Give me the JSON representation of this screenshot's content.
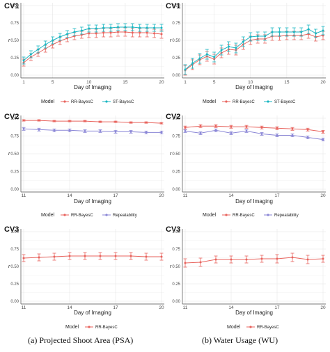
{
  "captions": {
    "left": "(a) Projected Shoot Area (PSA)",
    "right": "(b) Water Usage (WU)"
  },
  "colors": {
    "rr": "#e8635d",
    "st": "#19b6c2",
    "rep": "#8a86d6",
    "grid": "#e6e6e6",
    "axis": "#4d4d4d"
  },
  "chart_data": [
    {
      "id": "psa-cv1",
      "type": "line",
      "title": "CV1",
      "xlabel": "Day of Imaging",
      "ylabel": "r",
      "xlim": [
        1,
        20
      ],
      "ylim": [
        0,
        1
      ],
      "xticks": [
        1,
        5,
        10,
        15,
        20
      ],
      "yticks": [
        0.0,
        0.25,
        0.5,
        0.75,
        1.0
      ],
      "ytick_labels": [
        "0.00",
        "0.25",
        "0.50",
        "0.75",
        "1.00"
      ],
      "legend_title": "Model",
      "legend_position": "bottom",
      "x": [
        1,
        2,
        3,
        4,
        5,
        6,
        7,
        8,
        9,
        10,
        11,
        12,
        13,
        14,
        15,
        16,
        17,
        18,
        19,
        20
      ],
      "series": [
        {
          "name": "RR-BayesC",
          "color_key": "rr",
          "values": [
            0.18,
            0.26,
            0.32,
            0.38,
            0.44,
            0.49,
            0.53,
            0.56,
            0.58,
            0.6,
            0.6,
            0.61,
            0.61,
            0.62,
            0.62,
            0.61,
            0.61,
            0.61,
            0.6,
            0.59
          ],
          "error": [
            0.05,
            0.05,
            0.05,
            0.05,
            0.05,
            0.05,
            0.05,
            0.05,
            0.05,
            0.06,
            0.06,
            0.06,
            0.06,
            0.06,
            0.06,
            0.06,
            0.06,
            0.06,
            0.06,
            0.06
          ]
        },
        {
          "name": "ST-BayesC",
          "color_key": "st",
          "values": [
            0.21,
            0.3,
            0.37,
            0.44,
            0.5,
            0.55,
            0.59,
            0.62,
            0.64,
            0.67,
            0.67,
            0.68,
            0.68,
            0.69,
            0.69,
            0.69,
            0.68,
            0.68,
            0.68,
            0.68
          ],
          "error": [
            0.05,
            0.05,
            0.05,
            0.05,
            0.05,
            0.05,
            0.05,
            0.05,
            0.05,
            0.05,
            0.05,
            0.05,
            0.05,
            0.05,
            0.05,
            0.05,
            0.05,
            0.05,
            0.05,
            0.05
          ]
        }
      ]
    },
    {
      "id": "wu-cv1",
      "type": "line",
      "title": "CV1",
      "xlabel": "Day of Imaging",
      "ylabel": "r",
      "xlim": [
        1,
        20
      ],
      "ylim": [
        0,
        1
      ],
      "xticks": [
        1,
        5,
        10,
        15,
        20
      ],
      "yticks": [
        0.0,
        0.25,
        0.5,
        0.75,
        1.0
      ],
      "ytick_labels": [
        "0.00",
        "0.25",
        "0.50",
        "0.75",
        "1.00"
      ],
      "legend_title": "Model",
      "legend_position": "bottom",
      "x": [
        1,
        2,
        3,
        4,
        5,
        6,
        7,
        8,
        9,
        10,
        11,
        12,
        13,
        14,
        15,
        16,
        17,
        18,
        19,
        20
      ],
      "series": [
        {
          "name": "RR-BayesC",
          "color_key": "rr",
          "values": [
            0.07,
            0.15,
            0.22,
            0.27,
            0.23,
            0.32,
            0.37,
            0.36,
            0.44,
            0.5,
            0.52,
            0.52,
            0.56,
            0.56,
            0.57,
            0.57,
            0.57,
            0.59,
            0.55,
            0.57
          ],
          "error": [
            0.07,
            0.07,
            0.07,
            0.07,
            0.07,
            0.07,
            0.07,
            0.07,
            0.07,
            0.06,
            0.06,
            0.06,
            0.06,
            0.06,
            0.06,
            0.06,
            0.06,
            0.06,
            0.06,
            0.06
          ]
        },
        {
          "name": "ST-BayesC",
          "color_key": "st",
          "values": [
            0.08,
            0.17,
            0.24,
            0.3,
            0.26,
            0.36,
            0.41,
            0.39,
            0.48,
            0.55,
            0.56,
            0.56,
            0.62,
            0.62,
            0.62,
            0.62,
            0.62,
            0.66,
            0.6,
            0.64
          ],
          "error": [
            0.07,
            0.07,
            0.07,
            0.07,
            0.07,
            0.07,
            0.07,
            0.07,
            0.07,
            0.06,
            0.06,
            0.06,
            0.06,
            0.06,
            0.06,
            0.06,
            0.06,
            0.06,
            0.06,
            0.06
          ]
        }
      ]
    },
    {
      "id": "psa-cv2",
      "type": "line",
      "title": "CV2",
      "xlabel": "Day of Imaging",
      "ylabel": "r",
      "xlim": [
        11,
        20
      ],
      "ylim": [
        0,
        1
      ],
      "xticks": [
        11,
        14,
        17,
        20
      ],
      "yticks": [
        0.0,
        0.25,
        0.5,
        0.75,
        1.0
      ],
      "ytick_labels": [
        "0.00",
        "0.25",
        "0.50",
        "0.75",
        "1.00"
      ],
      "legend_title": "Model",
      "legend_position": "bottom",
      "x": [
        11,
        12,
        13,
        14,
        15,
        16,
        17,
        18,
        19,
        20
      ],
      "series": [
        {
          "name": "RR-BayesC",
          "color_key": "rr",
          "values": [
            0.97,
            0.97,
            0.96,
            0.96,
            0.96,
            0.95,
            0.95,
            0.94,
            0.94,
            0.93
          ],
          "error": [
            0.01,
            0.01,
            0.01,
            0.01,
            0.01,
            0.01,
            0.01,
            0.01,
            0.01,
            0.01
          ]
        },
        {
          "name": "Repeatability",
          "color_key": "rep",
          "values": [
            0.85,
            0.84,
            0.83,
            0.83,
            0.82,
            0.82,
            0.81,
            0.81,
            0.8,
            0.8
          ],
          "error": [
            0.02,
            0.02,
            0.02,
            0.02,
            0.02,
            0.02,
            0.02,
            0.02,
            0.02,
            0.02
          ]
        }
      ]
    },
    {
      "id": "wu-cv2",
      "type": "line",
      "title": "CV2",
      "xlabel": "Day of Imaging",
      "ylabel": "r",
      "xlim": [
        11,
        20
      ],
      "ylim": [
        0,
        1
      ],
      "xticks": [
        11,
        14,
        17,
        20
      ],
      "yticks": [
        0.0,
        0.25,
        0.5,
        0.75,
        1.0
      ],
      "ytick_labels": [
        "0.00",
        "0.25",
        "0.50",
        "0.75",
        "1.00"
      ],
      "legend_title": "Model",
      "legend_position": "bottom",
      "x": [
        11,
        12,
        13,
        14,
        15,
        16,
        17,
        18,
        19,
        20
      ],
      "series": [
        {
          "name": "RR-BayesC",
          "color_key": "rr",
          "values": [
            0.87,
            0.89,
            0.89,
            0.88,
            0.88,
            0.87,
            0.86,
            0.85,
            0.84,
            0.81
          ],
          "error": [
            0.02,
            0.02,
            0.02,
            0.02,
            0.02,
            0.02,
            0.02,
            0.02,
            0.02,
            0.02
          ]
        },
        {
          "name": "Repeatability",
          "color_key": "rep",
          "values": [
            0.82,
            0.79,
            0.83,
            0.79,
            0.82,
            0.78,
            0.76,
            0.76,
            0.73,
            0.7
          ],
          "error": [
            0.02,
            0.02,
            0.02,
            0.02,
            0.02,
            0.02,
            0.02,
            0.02,
            0.02,
            0.02
          ]
        }
      ]
    },
    {
      "id": "psa-cv3",
      "type": "line",
      "title": "CV3",
      "xlabel": "Day of Imaging",
      "ylabel": "r",
      "xlim": [
        11,
        20
      ],
      "ylim": [
        0,
        1
      ],
      "xticks": [
        11,
        14,
        17,
        20
      ],
      "yticks": [
        0.0,
        0.25,
        0.5,
        0.75,
        1.0
      ],
      "ytick_labels": [
        "0.00",
        "0.25",
        "0.50",
        "0.75",
        "1.00"
      ],
      "legend_title": "Model",
      "legend_position": "bottom",
      "x": [
        11,
        12,
        13,
        14,
        15,
        16,
        17,
        18,
        19,
        20
      ],
      "series": [
        {
          "name": "RR-BayesC",
          "color_key": "rr",
          "values": [
            0.62,
            0.63,
            0.64,
            0.65,
            0.65,
            0.65,
            0.65,
            0.65,
            0.64,
            0.64
          ],
          "error": [
            0.05,
            0.05,
            0.05,
            0.05,
            0.05,
            0.05,
            0.05,
            0.05,
            0.05,
            0.05
          ]
        }
      ]
    },
    {
      "id": "wu-cv3",
      "type": "line",
      "title": "CV3",
      "xlabel": "Day of Imaging",
      "ylabel": "r",
      "xlim": [
        11,
        20
      ],
      "ylim": [
        0,
        1
      ],
      "xticks": [
        11,
        14,
        17,
        20
      ],
      "yticks": [
        0.0,
        0.25,
        0.5,
        0.75,
        1.0
      ],
      "ytick_labels": [
        "0.00",
        "0.25",
        "0.50",
        "0.75",
        "1.00"
      ],
      "legend_title": "Model",
      "legend_position": "bottom",
      "x": [
        11,
        12,
        13,
        14,
        15,
        16,
        17,
        18,
        19,
        20
      ],
      "series": [
        {
          "name": "RR-BayesC",
          "color_key": "rr",
          "values": [
            0.55,
            0.56,
            0.6,
            0.6,
            0.6,
            0.61,
            0.61,
            0.63,
            0.6,
            0.61
          ],
          "error": [
            0.06,
            0.06,
            0.05,
            0.05,
            0.05,
            0.05,
            0.06,
            0.06,
            0.06,
            0.05
          ]
        }
      ]
    }
  ]
}
